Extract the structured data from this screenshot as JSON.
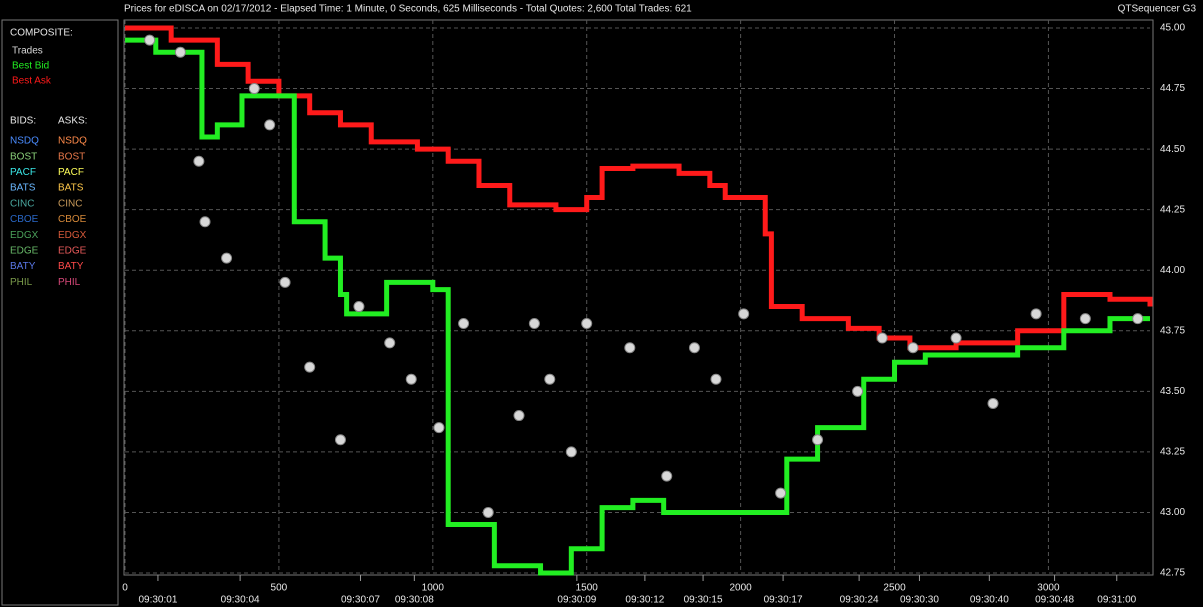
{
  "chart_data": {
    "type": "market",
    "title": "Prices for  eDISCA  on  02/17/2012  -  Elapsed Time: 1 Minute, 0 Seconds, 625 Milliseconds  -  Total Quotes: 2,600  Total Trades: 621",
    "app_name": "QTSequencer G3",
    "composite_label": "COMPOSITE:",
    "bids_label": "BIDS:",
    "asks_label": "ASKS:",
    "xlim": [
      0,
      3330
    ],
    "ylim": [
      42.75,
      45.0
    ],
    "yticks": [
      {
        "value": 42.75,
        "label": "42.75"
      },
      {
        "value": 43.0,
        "label": "43.00"
      },
      {
        "value": 43.25,
        "label": "43.25"
      },
      {
        "value": 43.5,
        "label": "43.50"
      },
      {
        "value": 43.75,
        "label": "43.75"
      },
      {
        "value": 44.0,
        "label": "44.00"
      },
      {
        "value": 44.25,
        "label": "44.25"
      },
      {
        "value": 44.5,
        "label": "44.50"
      },
      {
        "value": 44.75,
        "label": "44.75"
      },
      {
        "value": 45.0,
        "label": "45.00"
      }
    ],
    "xticks": [
      0,
      500,
      1000,
      1500,
      2000,
      2500,
      3000
    ],
    "time_ticks": [
      {
        "value": 107,
        "label": "09:30:01"
      },
      {
        "value": 374,
        "label": "09:30:04"
      },
      {
        "value": 765,
        "label": "09:30:07"
      },
      {
        "value": 940,
        "label": "09:30:08"
      },
      {
        "value": 1468,
        "label": "09:30:09"
      },
      {
        "value": 1689,
        "label": "09:30:12"
      },
      {
        "value": 1878,
        "label": "09:30:15"
      },
      {
        "value": 2138,
        "label": "09:30:17"
      },
      {
        "value": 2385,
        "label": "09:30:24"
      },
      {
        "value": 2581,
        "label": "09:30:30"
      },
      {
        "value": 2808,
        "label": "09:30:40"
      },
      {
        "value": 3020,
        "label": "09:30:48"
      },
      {
        "value": 3222,
        "label": "09:31:00"
      }
    ],
    "grid": true,
    "series": [
      {
        "name": "Best Ask",
        "color": "#ff1a1a",
        "kind": "step",
        "x": [
          0,
          150,
          300,
          400,
          500,
          600,
          700,
          800,
          950,
          1050,
          1150,
          1250,
          1400,
          1500,
          1550,
          1650,
          1800,
          1900,
          1950,
          2080,
          2100,
          2200,
          2350,
          2450,
          2550,
          2700,
          2900,
          3050,
          3200,
          3330
        ],
        "values": [
          45.0,
          44.95,
          44.85,
          44.78,
          44.72,
          44.65,
          44.6,
          44.53,
          44.5,
          44.45,
          44.35,
          44.27,
          44.25,
          44.3,
          44.42,
          44.43,
          44.4,
          44.35,
          44.3,
          44.15,
          43.85,
          43.8,
          43.76,
          43.72,
          43.68,
          43.7,
          43.75,
          43.9,
          43.88,
          43.85
        ]
      },
      {
        "name": "Best Bid",
        "color": "#22ee22",
        "kind": "step",
        "x": [
          0,
          100,
          250,
          300,
          380,
          450,
          550,
          650,
          700,
          720,
          800,
          850,
          1000,
          1050,
          1200,
          1300,
          1350,
          1450,
          1550,
          1650,
          1750,
          1900,
          2050,
          2150,
          2250,
          2400,
          2500,
          2600,
          2700,
          2900,
          3050,
          3200,
          3330
        ],
        "values": [
          44.95,
          44.9,
          44.55,
          44.6,
          44.72,
          44.72,
          44.2,
          44.05,
          43.9,
          43.82,
          43.82,
          43.95,
          43.92,
          42.95,
          42.78,
          42.78,
          42.75,
          42.85,
          43.02,
          43.05,
          43.0,
          43.0,
          43.0,
          43.22,
          43.35,
          43.55,
          43.62,
          43.65,
          43.65,
          43.68,
          43.75,
          43.8,
          43.8
        ]
      },
      {
        "name": "Trades",
        "color": "#d8d8d8",
        "kind": "dots",
        "x": [
          80,
          180,
          240,
          260,
          330,
          420,
          470,
          520,
          600,
          700,
          760,
          860,
          930,
          1020,
          1100,
          1180,
          1280,
          1330,
          1380,
          1450,
          1500,
          1640,
          1760,
          1850,
          1920,
          2010,
          2130,
          2250,
          2380,
          2460,
          2560,
          2700,
          2820,
          2960,
          3120,
          3290
        ],
        "values": [
          44.95,
          44.9,
          44.45,
          44.2,
          44.05,
          44.75,
          44.6,
          43.95,
          43.6,
          43.3,
          43.85,
          43.7,
          43.55,
          43.35,
          43.78,
          43.0,
          43.4,
          43.78,
          43.55,
          43.25,
          43.78,
          43.68,
          43.15,
          43.68,
          43.55,
          43.82,
          43.08,
          43.3,
          43.5,
          43.72,
          43.68,
          43.72,
          43.45,
          43.82,
          43.8,
          43.8
        ]
      }
    ],
    "legend": {
      "bids": [
        {
          "name": "NSDQ",
          "color": "#4a8cff"
        },
        {
          "name": "BOST",
          "color": "#8ad07a"
        },
        {
          "name": "PACF",
          "color": "#3ae8e8"
        },
        {
          "name": "BATS",
          "color": "#6ab8ff"
        },
        {
          "name": "CINC",
          "color": "#4aa8a0"
        },
        {
          "name": "CBOE",
          "color": "#2a68c8"
        },
        {
          "name": "EDGX",
          "color": "#4aa05a"
        },
        {
          "name": "EDGE",
          "color": "#68b868"
        },
        {
          "name": "BATY",
          "color": "#5a78e8"
        },
        {
          "name": "PHIL",
          "color": "#7a9a4a"
        }
      ],
      "asks": [
        {
          "name": "NSDQ",
          "color": "#ff8a4a"
        },
        {
          "name": "BOST",
          "color": "#e8784a"
        },
        {
          "name": "PACF",
          "color": "#ffff5a"
        },
        {
          "name": "BATS",
          "color": "#ffc84a"
        },
        {
          "name": "CINC",
          "color": "#c89a5a"
        },
        {
          "name": "CBOE",
          "color": "#d88a3a"
        },
        {
          "name": "EDGX",
          "color": "#d85a3a"
        },
        {
          "name": "EDGE",
          "color": "#e85a5a"
        },
        {
          "name": "BATY",
          "color": "#ff4a4a"
        },
        {
          "name": "PHIL",
          "color": "#d8487a"
        }
      ]
    }
  }
}
